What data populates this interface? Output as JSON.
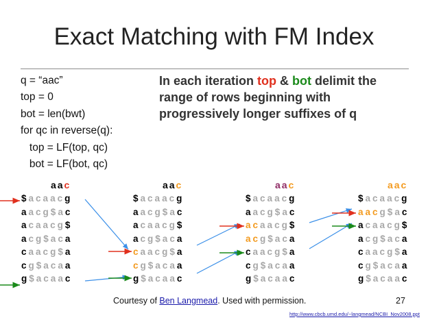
{
  "slide": {
    "title": "Exact Matching with FM Index",
    "code": [
      "q = “aac”",
      "top = 0",
      "bot = len(bwt)",
      "for qc in reverse(q):",
      "   top = LF(top, qc)",
      "   bot = LF(bot, qc)"
    ],
    "description": {
      "part1": "In each iteration ",
      "top_word": "top",
      "amp": " & ",
      "bot_word": "bot",
      "part2": " delimit the range of rows beginning with progressively longer suffixes of q"
    },
    "footer": {
      "prefix": "Courtesy of ",
      "link": "Ben Langmead",
      "suffix": ". Used with permission.",
      "page": "27",
      "url": "http://www.cbcb.umd.edu/~langmead/NCBI_Nov2008.ppt"
    },
    "panels": [
      {
        "header": "aac",
        "rows": [
          "$acaacg",
          "aacg$ac",
          "acaacg$",
          "acg$aca",
          "caacg$a",
          "cg$acaa",
          "g$acaac"
        ]
      },
      {
        "header": "aac",
        "rows": [
          "$acaacg",
          "aacg$ac",
          "acaacg$",
          "acg$aca",
          "caacg$a",
          "cg$acaa",
          "g$acaac"
        ]
      },
      {
        "header": "aac",
        "rows": [
          "$acaacg",
          "aacg$ac",
          "acaacg$",
          "acg$aca",
          "caacg$a",
          "cg$acaa",
          "g$acaac"
        ]
      },
      {
        "header": "aac",
        "rows": [
          "$acaacg",
          "aacg$ac",
          "acaacg$",
          "acg$aca",
          "caacg$a",
          "cg$acaa",
          "g$acaac"
        ]
      }
    ],
    "colors": {
      "top": "#e0301e",
      "bot": "#1a8a1a",
      "highlight": "#f39a1e",
      "arrow": "#3a8fe8"
    }
  }
}
